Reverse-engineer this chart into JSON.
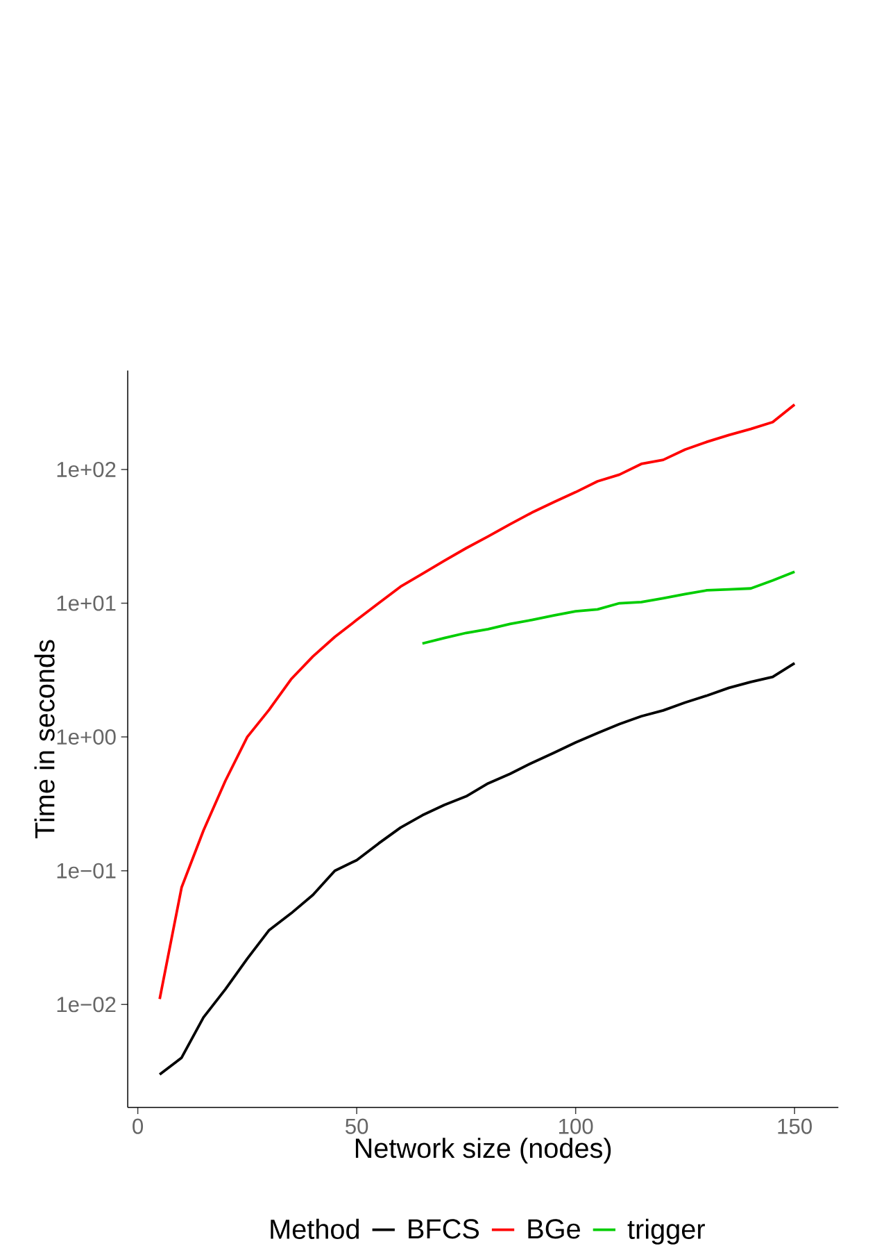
{
  "chart_data": {
    "type": "line",
    "xlabel": "Network size (nodes)",
    "ylabel": "Time in seconds",
    "legend_title": "Method",
    "legend": "bottom",
    "log": "y",
    "grid": false,
    "marker": "none",
    "line_style": "solid",
    "xlim": [
      -2.3,
      160
    ],
    "xticks": [
      0,
      50,
      100,
      150
    ],
    "ylim": [
      0.0017,
      550
    ],
    "yticks": [
      {
        "value": 0.01,
        "label": "1e−02"
      },
      {
        "value": 0.1,
        "label": "1e−01"
      },
      {
        "value": 1,
        "label": "1e+00"
      },
      {
        "value": 10,
        "label": "1e+01"
      },
      {
        "value": 100,
        "label": "1e+02"
      }
    ],
    "x": [
      5,
      10,
      15,
      20,
      25,
      30,
      35,
      40,
      45,
      50,
      55,
      60,
      65,
      70,
      75,
      80,
      85,
      90,
      95,
      100,
      105,
      110,
      115,
      120,
      125,
      130,
      135,
      140,
      145,
      150
    ],
    "series": [
      {
        "name": "BFCS",
        "color": "#000000",
        "values": [
          0.003,
          0.004,
          0.008,
          0.013,
          0.022,
          0.036,
          0.048,
          0.066,
          0.1,
          0.12,
          0.16,
          0.21,
          0.26,
          0.31,
          0.36,
          0.45,
          0.53,
          0.64,
          0.76,
          0.91,
          1.07,
          1.25,
          1.43,
          1.58,
          1.81,
          2.04,
          2.33,
          2.58,
          2.81,
          3.56
        ]
      },
      {
        "name": "BGe",
        "color": "#ff0000",
        "values": [
          0.011,
          0.075,
          0.2,
          0.47,
          1.0,
          1.6,
          2.7,
          4.0,
          5.6,
          7.5,
          10,
          13.3,
          16.6,
          20.8,
          25.8,
          31.6,
          38.9,
          47.6,
          57,
          67.7,
          81.6,
          91.5,
          110,
          118,
          141,
          161,
          181,
          201,
          226,
          306
        ]
      },
      {
        "name": "trigger",
        "color": "#00cd00",
        "values": [
          null,
          null,
          null,
          null,
          null,
          null,
          null,
          null,
          null,
          null,
          null,
          null,
          5.0,
          5.5,
          6.0,
          6.4,
          7.0,
          7.5,
          8.1,
          8.7,
          9.0,
          10,
          10.2,
          10.9,
          11.7,
          12.5,
          12.7,
          12.9,
          14.8,
          17.2
        ]
      }
    ]
  }
}
